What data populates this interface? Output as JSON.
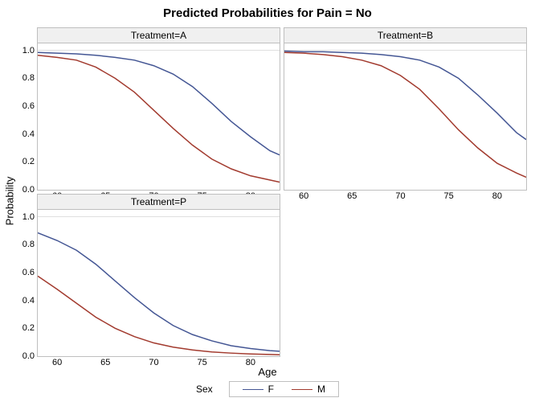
{
  "title": "Predicted Probabilities for Pain = No",
  "title_fontsize": 15,
  "xlabel": "Age",
  "ylabel": "Probability",
  "axis_fontsize": 13,
  "background_color": "#ffffff",
  "panel_border_color": "#bfbfbf",
  "panel_header_bg": "#f0f0f0",
  "tick_fontsize": 11,
  "legend": {
    "title": "Sex",
    "items": [
      {
        "label": "F",
        "color": "#445694"
      },
      {
        "label": "M",
        "color": "#a23a2e"
      }
    ]
  },
  "ylim": [
    0.0,
    1.05
  ],
  "yticks": [
    0.0,
    0.2,
    0.4,
    0.6,
    0.8,
    1.0
  ],
  "xlim": [
    58,
    83
  ],
  "xticks": [
    60,
    65,
    70,
    75,
    80
  ],
  "line_width": 1.5,
  "panels": [
    {
      "title": "Treatment=A",
      "series": [
        {
          "color": "#445694",
          "x": [
            58,
            60,
            62,
            64,
            66,
            68,
            70,
            72,
            74,
            76,
            78,
            80,
            82,
            83
          ],
          "y": [
            0.985,
            0.98,
            0.975,
            0.965,
            0.95,
            0.93,
            0.89,
            0.83,
            0.74,
            0.62,
            0.49,
            0.38,
            0.28,
            0.25
          ]
        },
        {
          "color": "#a23a2e",
          "x": [
            58,
            60,
            62,
            64,
            66,
            68,
            70,
            72,
            74,
            76,
            78,
            80,
            82,
            83
          ],
          "y": [
            0.965,
            0.95,
            0.93,
            0.88,
            0.8,
            0.7,
            0.57,
            0.44,
            0.32,
            0.22,
            0.15,
            0.1,
            0.07,
            0.055
          ]
        }
      ]
    },
    {
      "title": "Treatment=B",
      "series": [
        {
          "color": "#445694",
          "x": [
            58,
            60,
            62,
            64,
            66,
            68,
            70,
            72,
            74,
            76,
            78,
            80,
            82,
            83
          ],
          "y": [
            0.995,
            0.99,
            0.99,
            0.985,
            0.98,
            0.97,
            0.955,
            0.93,
            0.88,
            0.8,
            0.68,
            0.55,
            0.41,
            0.36
          ]
        },
        {
          "color": "#a23a2e",
          "x": [
            58,
            60,
            62,
            64,
            66,
            68,
            70,
            72,
            74,
            76,
            78,
            80,
            82,
            83
          ],
          "y": [
            0.985,
            0.98,
            0.97,
            0.955,
            0.93,
            0.89,
            0.82,
            0.72,
            0.58,
            0.43,
            0.3,
            0.19,
            0.12,
            0.09
          ]
        }
      ]
    },
    {
      "title": "Treatment=P",
      "series": [
        {
          "color": "#445694",
          "x": [
            58,
            60,
            62,
            64,
            66,
            68,
            70,
            72,
            74,
            76,
            78,
            80,
            82,
            83
          ],
          "y": [
            0.885,
            0.83,
            0.76,
            0.66,
            0.54,
            0.42,
            0.31,
            0.22,
            0.155,
            0.11,
            0.075,
            0.055,
            0.04,
            0.035
          ]
        },
        {
          "color": "#a23a2e",
          "x": [
            58,
            60,
            62,
            64,
            66,
            68,
            70,
            72,
            74,
            76,
            78,
            80,
            82,
            83
          ],
          "y": [
            0.575,
            0.48,
            0.38,
            0.28,
            0.2,
            0.14,
            0.095,
            0.065,
            0.045,
            0.03,
            0.022,
            0.016,
            0.012,
            0.01
          ]
        }
      ]
    }
  ]
}
